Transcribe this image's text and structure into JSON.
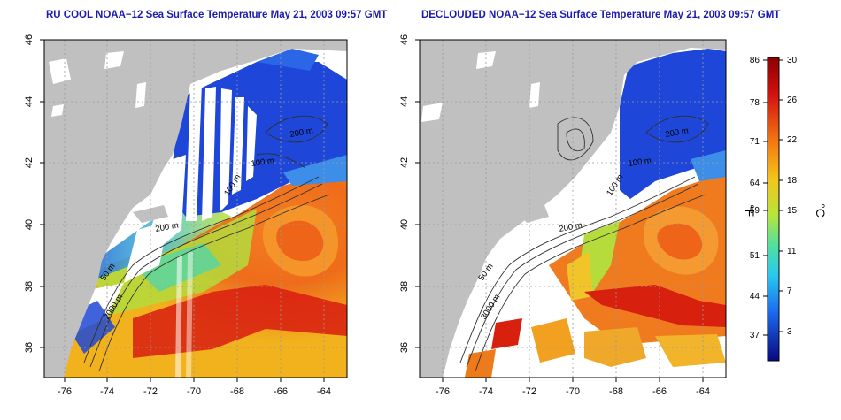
{
  "panels": [
    {
      "title": "RU COOL NOAA−12 Sea Surface Temperature May 21, 2003 09:57 GMT",
      "lon_ticks": [
        "-76",
        "-74",
        "-72",
        "-70",
        "-68",
        "-66",
        "-64"
      ],
      "lat_ticks": [
        "36",
        "38",
        "40",
        "42",
        "44",
        "46"
      ],
      "contour_labels": [
        "50 m",
        "100 m",
        "200 m",
        "2000 m",
        "200 m",
        "100 m"
      ]
    },
    {
      "title": "DECLOUDED NOAA−12 Sea Surface Temperature May 21, 2003 09:57 GMT",
      "lon_ticks": [
        "-76",
        "-74",
        "-72",
        "-70",
        "-68",
        "-66",
        "-64"
      ],
      "lat_ticks": [
        "36",
        "38",
        "40",
        "42",
        "44",
        "46"
      ],
      "contour_labels": [
        "50 m",
        "100 m",
        "200 m",
        "3000 m",
        "200 m",
        "100 m"
      ]
    }
  ],
  "colorbar": {
    "fahrenheit_label": "°F",
    "celsius_label": "°C",
    "f_ticks": [
      "86",
      "78",
      "71",
      "64",
      "59",
      "51",
      "44",
      "37"
    ],
    "c_ticks": [
      "30",
      "26",
      "22",
      "18",
      "15",
      "11",
      "7",
      "3"
    ]
  },
  "map_extent": {
    "lon_range": [
      -77,
      -63
    ],
    "lat_range": [
      35,
      46
    ]
  },
  "colors": {
    "land": "#c0c0c0",
    "cloud": "#ffffff",
    "cold": "#1a3fd6",
    "warm": "#f05a14",
    "title": "#1a1ab0"
  }
}
